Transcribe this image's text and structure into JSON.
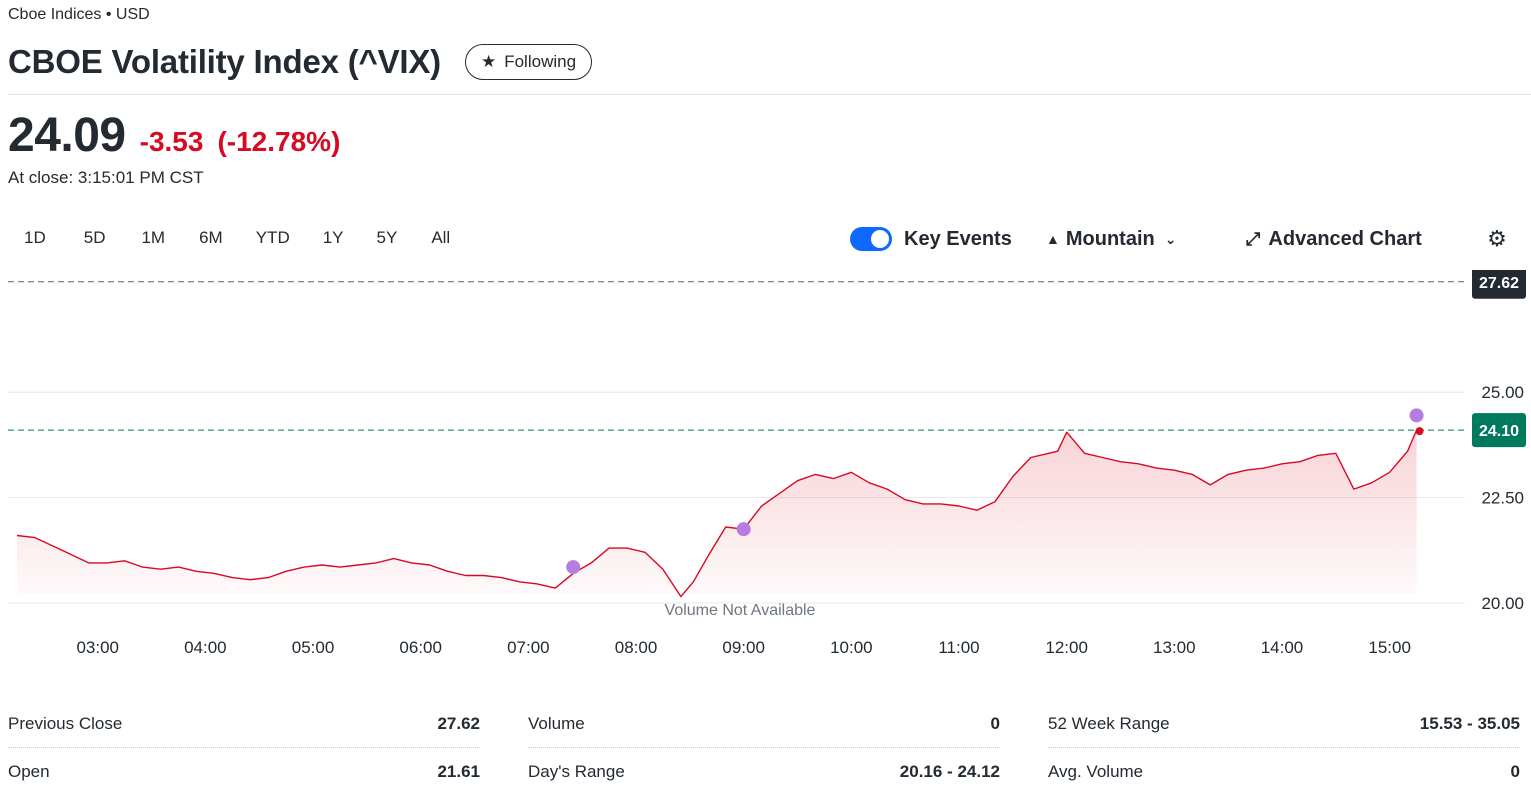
{
  "header": {
    "exchange": "Cboe Indices • USD",
    "title": "CBOE Volatility Index (^VIX)",
    "follow_label": "Following"
  },
  "quote": {
    "price": "24.09",
    "change": "-3.53",
    "change_pct": "(-12.78%)",
    "close_time": "At close: 3:15:01 PM CST"
  },
  "ranges": [
    "1D",
    "5D",
    "1M",
    "6M",
    "YTD",
    "1Y",
    "5Y",
    "All"
  ],
  "toolbar": {
    "key_events_label": "Key Events",
    "key_events_on": true,
    "chart_type_label": "Mountain",
    "advanced_label": "Advanced Chart"
  },
  "icons": {
    "star": "star-icon",
    "mountain": "mountain-icon",
    "chevron": "chevron-down-icon",
    "expand": "expand-icon",
    "gear": "gear-icon"
  },
  "colors": {
    "accent_red": "#d60a22",
    "toggle_blue": "#0f69ff",
    "prev_close_badge": "#232a31",
    "current_badge": "#007a5c",
    "event_marker": "#b57de0"
  },
  "chart_data": {
    "type": "area",
    "x_unit": "time",
    "x_ticks": [
      "03:00",
      "04:00",
      "05:00",
      "06:00",
      "07:00",
      "08:00",
      "09:00",
      "10:00",
      "11:00",
      "12:00",
      "13:00",
      "14:00",
      "15:00"
    ],
    "y_ticks": [
      "25.00",
      "22.50",
      "20.00"
    ],
    "ylim": [
      19.95,
      27.9
    ],
    "xlim": [
      "02:10",
      "15:42"
    ],
    "previous_close": {
      "value": 27.62,
      "label": "27.62"
    },
    "current": {
      "value": 24.1,
      "label": "24.10"
    },
    "volume_note": "Volume Not Available",
    "series": [
      {
        "x": [
          "02:15",
          "02:25",
          "02:35",
          "02:45",
          "02:55",
          "03:05",
          "03:15",
          "03:25",
          "03:35",
          "03:45",
          "03:55",
          "04:05",
          "04:15",
          "04:25",
          "04:35",
          "04:45",
          "04:55",
          "05:05",
          "05:15",
          "05:25",
          "05:35",
          "05:45",
          "05:55",
          "06:05",
          "06:15",
          "06:25",
          "06:35",
          "06:45",
          "06:55",
          "07:05",
          "07:15",
          "07:25",
          "07:35",
          "07:45",
          "07:55",
          "08:05",
          "08:15",
          "08:25",
          "08:32",
          "08:40",
          "08:50",
          "09:00",
          "09:10",
          "09:20",
          "09:30",
          "09:40",
          "09:50",
          "10:00",
          "10:10",
          "10:20",
          "10:30",
          "10:40",
          "10:50",
          "11:00",
          "11:10",
          "11:20",
          "11:30",
          "11:40",
          "11:50",
          "11:55",
          "12:00",
          "12:10",
          "12:20",
          "12:30",
          "12:40",
          "12:50",
          "13:00",
          "13:10",
          "13:20",
          "13:30",
          "13:40",
          "13:50",
          "14:00",
          "14:10",
          "14:20",
          "14:30",
          "14:40",
          "14:50",
          "15:00",
          "15:10",
          "15:15"
        ],
        "y": [
          21.6,
          21.55,
          21.35,
          21.15,
          20.95,
          20.95,
          21.0,
          20.85,
          20.8,
          20.85,
          20.75,
          20.7,
          20.6,
          20.55,
          20.6,
          20.75,
          20.85,
          20.9,
          20.85,
          20.9,
          20.95,
          21.05,
          20.95,
          20.9,
          20.75,
          20.65,
          20.65,
          20.6,
          20.5,
          20.45,
          20.35,
          20.7,
          20.95,
          21.3,
          21.3,
          21.2,
          20.8,
          20.15,
          20.5,
          21.1,
          21.8,
          21.75,
          22.3,
          22.6,
          22.9,
          23.05,
          22.95,
          23.1,
          22.85,
          22.7,
          22.45,
          22.35,
          22.35,
          22.3,
          22.2,
          22.4,
          23.0,
          23.45,
          23.55,
          23.6,
          24.05,
          23.55,
          23.45,
          23.35,
          23.3,
          23.2,
          23.15,
          23.05,
          22.8,
          23.05,
          23.15,
          23.2,
          23.3,
          23.35,
          23.5,
          23.55,
          22.7,
          22.85,
          23.1,
          23.6,
          24.1
        ]
      }
    ],
    "key_events": [
      {
        "x": "07:25",
        "y": 20.85
      },
      {
        "x": "09:00",
        "y": 21.75
      },
      {
        "x": "15:15",
        "y": 24.45
      }
    ]
  },
  "stats": [
    {
      "label": "Previous Close",
      "value": "27.62"
    },
    {
      "label": "Open",
      "value": "21.61"
    },
    {
      "label": "Volume",
      "value": "0"
    },
    {
      "label": "Day's Range",
      "value": "20.16 - 24.12"
    },
    {
      "label": "52 Week Range",
      "value": "15.53 - 35.05"
    },
    {
      "label": "Avg. Volume",
      "value": "0"
    }
  ]
}
